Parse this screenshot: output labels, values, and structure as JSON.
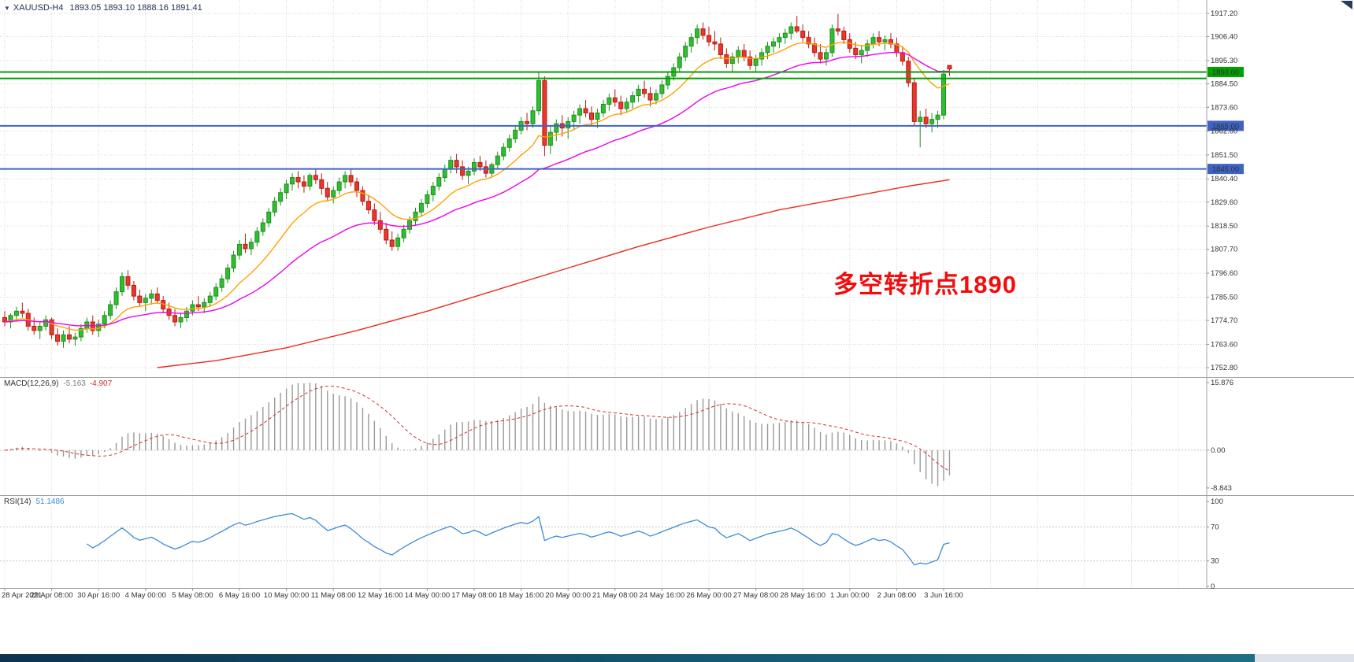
{
  "header": {
    "collapse_arrow": "▼",
    "symbol": "XAUUSD-H4",
    "ohlc": "1893.05 1893.10 1888.16 1891.41"
  },
  "annotation": {
    "text": "多空转折点1890",
    "color": "#f20c0c"
  },
  "colors": {
    "candle_up": "#2FBE2F",
    "candle_up_border": "#1F8F1F",
    "candle_down": "#E8382D",
    "candle_down_border": "#B51A10",
    "ma_fast": "#FFA200",
    "ma_medium": "#EE00EE",
    "ma_slow": "#EE2A1C",
    "macd_histogram": "#999999",
    "macd_signal": "#D63031",
    "rsi_line": "#3D8BD4",
    "hline_green": "#00A000",
    "hline_blue": "#3E63C4",
    "grid": "#D6D6D6"
  },
  "price_axis": {
    "ticks": [
      {
        "v": 1917.2,
        "label": "1917.20"
      },
      {
        "v": 1906.4,
        "label": "1906.40"
      },
      {
        "v": 1895.3,
        "label": "1895.30"
      },
      {
        "v": 1884.5,
        "label": "1884.50"
      },
      {
        "v": 1873.6,
        "label": "1873.60"
      },
      {
        "v": 1862.6,
        "label": "1862.60"
      },
      {
        "v": 1851.5,
        "label": "1851.50"
      },
      {
        "v": 1840.4,
        "label": "1840.40"
      },
      {
        "v": 1829.6,
        "label": "1829.60"
      },
      {
        "v": 1818.5,
        "label": "1818.50"
      },
      {
        "v": 1807.7,
        "label": "1807.70"
      },
      {
        "v": 1796.6,
        "label": "1796.60"
      },
      {
        "v": 1785.5,
        "label": "1785.50"
      },
      {
        "v": 1774.7,
        "label": "1774.70"
      },
      {
        "v": 1763.6,
        "label": "1763.60"
      },
      {
        "v": 1752.8,
        "label": "1752.80"
      }
    ]
  },
  "hlines": [
    {
      "price": 1890.0,
      "color": "#00A000",
      "badge": "1890.00"
    },
    {
      "price": 1887.0,
      "color": "#00A000",
      "badge": ""
    },
    {
      "price": 1865.0,
      "color": "#3E63C4",
      "badge": "1865.00"
    },
    {
      "price": 1845.0,
      "color": "#3E63C4",
      "badge": "1845.00"
    }
  ],
  "indicators": {
    "macd": {
      "label": "MACD(12,26,9)",
      "value1": "-5.163",
      "value2": "-4.907",
      "axis_ticks": [
        {
          "v": 15.876,
          "label": "15.876"
        },
        {
          "v": 0,
          "label": "0.00"
        },
        {
          "v": -8.843,
          "label": "-8.843"
        }
      ]
    },
    "rsi": {
      "label": "RSI(14)",
      "value": "51.1486",
      "levels": [
        70,
        30
      ],
      "axis_ticks": [
        {
          "v": 100,
          "label": "100"
        },
        {
          "v": 70,
          "label": "70"
        },
        {
          "v": 30,
          "label": "30"
        },
        {
          "v": 0,
          "label": "0"
        }
      ]
    }
  },
  "chart_data": {
    "type": "candlestick",
    "symbol": "XAUUSD",
    "timeframe": "H4",
    "ylim": [
      1752.8,
      1917.2
    ],
    "bars_per_label": 8,
    "x_labels": [
      "28 Apr 2021",
      "29 Apr 08:00",
      "30 Apr 16:00",
      "4 May 00:00",
      "5 May 08:00",
      "6 May 16:00",
      "10 May 00:00",
      "11 May 08:00",
      "12 May 16:00",
      "14 May 00:00",
      "17 May 08:00",
      "18 May 16:00",
      "20 May 00:00",
      "21 May 08:00",
      "24 May 16:00",
      "26 May 00:00",
      "27 May 08:00",
      "28 May 16:00",
      "1 Jun 00:00",
      "2 Jun 08:00",
      "3 Jun 16:00"
    ],
    "candles": [
      [
        1776,
        1779,
        1772,
        1774
      ],
      [
        1774,
        1778,
        1771,
        1777
      ],
      [
        1777,
        1781,
        1774,
        1779
      ],
      [
        1779,
        1783,
        1776,
        1778
      ],
      [
        1778,
        1780,
        1770,
        1772
      ],
      [
        1772,
        1776,
        1768,
        1770
      ],
      [
        1770,
        1774,
        1766,
        1772
      ],
      [
        1772,
        1777,
        1770,
        1775
      ],
      [
        1775,
        1776,
        1766,
        1768
      ],
      [
        1768,
        1771,
        1763,
        1765
      ],
      [
        1765,
        1770,
        1762,
        1768
      ],
      [
        1768,
        1772,
        1764,
        1766
      ],
      [
        1766,
        1769,
        1763,
        1767
      ],
      [
        1767,
        1773,
        1765,
        1771
      ],
      [
        1771,
        1776,
        1769,
        1774
      ],
      [
        1774,
        1777,
        1768,
        1770
      ],
      [
        1770,
        1775,
        1767,
        1773
      ],
      [
        1773,
        1779,
        1771,
        1777
      ],
      [
        1777,
        1784,
        1775,
        1782
      ],
      [
        1782,
        1790,
        1780,
        1788
      ],
      [
        1788,
        1797,
        1786,
        1795
      ],
      [
        1795,
        1798,
        1789,
        1791
      ],
      [
        1791,
        1793,
        1784,
        1786
      ],
      [
        1786,
        1789,
        1781,
        1783
      ],
      [
        1783,
        1787,
        1779,
        1785
      ],
      [
        1785,
        1789,
        1782,
        1787
      ],
      [
        1787,
        1790,
        1783,
        1784
      ],
      [
        1784,
        1786,
        1778,
        1780
      ],
      [
        1780,
        1783,
        1775,
        1777
      ],
      [
        1777,
        1780,
        1772,
        1774
      ],
      [
        1774,
        1778,
        1771,
        1776
      ],
      [
        1776,
        1781,
        1774,
        1779
      ],
      [
        1779,
        1784,
        1777,
        1782
      ],
      [
        1782,
        1786,
        1779,
        1781
      ],
      [
        1781,
        1785,
        1778,
        1783
      ],
      [
        1783,
        1788,
        1781,
        1786
      ],
      [
        1786,
        1792,
        1784,
        1790
      ],
      [
        1790,
        1796,
        1788,
        1794
      ],
      [
        1794,
        1801,
        1792,
        1799
      ],
      [
        1799,
        1807,
        1797,
        1805
      ],
      [
        1805,
        1812,
        1803,
        1810
      ],
      [
        1810,
        1815,
        1806,
        1808
      ],
      [
        1808,
        1813,
        1805,
        1811
      ],
      [
        1811,
        1818,
        1809,
        1816
      ],
      [
        1816,
        1822,
        1814,
        1820
      ],
      [
        1820,
        1827,
        1818,
        1825
      ],
      [
        1825,
        1832,
        1823,
        1830
      ],
      [
        1830,
        1836,
        1828,
        1834
      ],
      [
        1834,
        1840,
        1831,
        1838
      ],
      [
        1838,
        1843,
        1835,
        1841
      ],
      [
        1841,
        1844,
        1836,
        1839
      ],
      [
        1839,
        1842,
        1834,
        1837
      ],
      [
        1837,
        1843,
        1835,
        1842
      ],
      [
        1842,
        1845,
        1838,
        1840
      ],
      [
        1840,
        1843,
        1833,
        1836
      ],
      [
        1836,
        1839,
        1830,
        1832
      ],
      [
        1832,
        1837,
        1829,
        1835
      ],
      [
        1835,
        1841,
        1833,
        1839
      ],
      [
        1839,
        1844,
        1836,
        1842
      ],
      [
        1842,
        1845,
        1837,
        1839
      ],
      [
        1839,
        1841,
        1832,
        1835
      ],
      [
        1835,
        1837,
        1828,
        1830
      ],
      [
        1830,
        1833,
        1824,
        1826
      ],
      [
        1826,
        1829,
        1819,
        1821
      ],
      [
        1821,
        1825,
        1815,
        1817
      ],
      [
        1817,
        1820,
        1810,
        1812
      ],
      [
        1812,
        1816,
        1807,
        1809
      ],
      [
        1809,
        1815,
        1807,
        1813
      ],
      [
        1813,
        1819,
        1811,
        1817
      ],
      [
        1817,
        1823,
        1815,
        1821
      ],
      [
        1821,
        1827,
        1819,
        1825
      ],
      [
        1825,
        1831,
        1823,
        1829
      ],
      [
        1829,
        1835,
        1827,
        1833
      ],
      [
        1833,
        1839,
        1830,
        1837
      ],
      [
        1837,
        1843,
        1835,
        1841
      ],
      [
        1841,
        1847,
        1839,
        1845
      ],
      [
        1845,
        1851,
        1843,
        1849
      ],
      [
        1849,
        1852,
        1843,
        1846
      ],
      [
        1846,
        1849,
        1840,
        1842
      ],
      [
        1842,
        1846,
        1838,
        1844
      ],
      [
        1844,
        1850,
        1842,
        1848
      ],
      [
        1848,
        1851,
        1844,
        1846
      ],
      [
        1846,
        1849,
        1841,
        1843
      ],
      [
        1843,
        1848,
        1841,
        1847
      ],
      [
        1847,
        1853,
        1845,
        1851
      ],
      [
        1851,
        1857,
        1849,
        1855
      ],
      [
        1855,
        1861,
        1853,
        1859
      ],
      [
        1859,
        1865,
        1857,
        1863
      ],
      [
        1863,
        1869,
        1861,
        1867
      ],
      [
        1867,
        1871,
        1863,
        1866
      ],
      [
        1866,
        1874,
        1864,
        1872
      ],
      [
        1872,
        1890,
        1870,
        1886
      ],
      [
        1886,
        1888,
        1851,
        1856
      ],
      [
        1856,
        1865,
        1852,
        1862
      ],
      [
        1862,
        1868,
        1858,
        1866
      ],
      [
        1866,
        1870,
        1860,
        1864
      ],
      [
        1864,
        1869,
        1859,
        1867
      ],
      [
        1867,
        1872,
        1863,
        1870
      ],
      [
        1870,
        1875,
        1866,
        1873
      ],
      [
        1873,
        1877,
        1869,
        1871
      ],
      [
        1871,
        1874,
        1865,
        1868
      ],
      [
        1868,
        1873,
        1864,
        1871
      ],
      [
        1871,
        1877,
        1869,
        1875
      ],
      [
        1875,
        1880,
        1872,
        1878
      ],
      [
        1878,
        1882,
        1874,
        1876
      ],
      [
        1876,
        1879,
        1870,
        1873
      ],
      [
        1873,
        1878,
        1871,
        1876
      ],
      [
        1876,
        1881,
        1873,
        1879
      ],
      [
        1879,
        1884,
        1876,
        1882
      ],
      [
        1882,
        1886,
        1878,
        1880
      ],
      [
        1880,
        1883,
        1874,
        1877
      ],
      [
        1877,
        1882,
        1875,
        1880
      ],
      [
        1880,
        1886,
        1878,
        1884
      ],
      [
        1884,
        1890,
        1882,
        1888
      ],
      [
        1888,
        1894,
        1886,
        1892
      ],
      [
        1892,
        1899,
        1890,
        1897
      ],
      [
        1897,
        1904,
        1895,
        1902
      ],
      [
        1902,
        1908,
        1899,
        1906
      ],
      [
        1906,
        1912,
        1903,
        1910
      ],
      [
        1910,
        1913,
        1905,
        1907
      ],
      [
        1907,
        1911,
        1902,
        1904
      ],
      [
        1904,
        1909,
        1900,
        1903
      ],
      [
        1903,
        1906,
        1896,
        1898
      ],
      [
        1898,
        1901,
        1892,
        1894
      ],
      [
        1894,
        1899,
        1890,
        1897
      ],
      [
        1897,
        1902,
        1894,
        1900
      ],
      [
        1900,
        1903,
        1895,
        1897
      ],
      [
        1897,
        1900,
        1891,
        1893
      ],
      [
        1893,
        1898,
        1890,
        1896
      ],
      [
        1896,
        1901,
        1893,
        1899
      ],
      [
        1899,
        1904,
        1896,
        1902
      ],
      [
        1902,
        1906,
        1899,
        1904
      ],
      [
        1904,
        1908,
        1901,
        1906
      ],
      [
        1906,
        1910,
        1903,
        1908
      ],
      [
        1908,
        1913,
        1905,
        1911
      ],
      [
        1911,
        1916,
        1908,
        1909
      ],
      [
        1909,
        1912,
        1904,
        1906
      ],
      [
        1906,
        1909,
        1901,
        1903
      ],
      [
        1903,
        1906,
        1897,
        1899
      ],
      [
        1899,
        1903,
        1894,
        1896
      ],
      [
        1896,
        1901,
        1893,
        1899
      ],
      [
        1899,
        1912,
        1897,
        1910
      ],
      [
        1910,
        1917,
        1907,
        1909
      ],
      [
        1909,
        1911,
        1903,
        1905
      ],
      [
        1905,
        1908,
        1899,
        1901
      ],
      [
        1901,
        1904,
        1896,
        1898
      ],
      [
        1898,
        1902,
        1894,
        1900
      ],
      [
        1900,
        1905,
        1897,
        1903
      ],
      [
        1903,
        1908,
        1901,
        1906
      ],
      [
        1906,
        1909,
        1902,
        1904
      ],
      [
        1904,
        1907,
        1900,
        1905
      ],
      [
        1905,
        1908,
        1901,
        1903
      ],
      [
        1903,
        1906,
        1897,
        1899
      ],
      [
        1899,
        1902,
        1893,
        1895
      ],
      [
        1895,
        1897,
        1883,
        1885
      ],
      [
        1885,
        1887,
        1865,
        1867
      ],
      [
        1867,
        1872,
        1855,
        1869
      ],
      [
        1869,
        1873,
        1864,
        1866
      ],
      [
        1866,
        1871,
        1862,
        1868
      ],
      [
        1868,
        1872,
        1864,
        1870
      ],
      [
        1870,
        1891,
        1868,
        1889
      ],
      [
        1893.05,
        1893.1,
        1888.16,
        1891.41
      ]
    ],
    "overlays": [
      {
        "name": "ma-fast",
        "type": "ema",
        "period": 13,
        "color": "#FFA200"
      },
      {
        "name": "ma-medium",
        "type": "ema",
        "period": 34,
        "color": "#EE00EE"
      },
      {
        "name": "ma-slow",
        "type": "points",
        "color": "#EE2A1C",
        "points": [
          [
            26,
            1752.8
          ],
          [
            36,
            1756
          ],
          [
            48,
            1762
          ],
          [
            60,
            1770
          ],
          [
            72,
            1779
          ],
          [
            84,
            1789
          ],
          [
            96,
            1799
          ],
          [
            108,
            1809
          ],
          [
            120,
            1818
          ],
          [
            132,
            1826
          ],
          [
            144,
            1832
          ],
          [
            154,
            1837
          ],
          [
            161,
            1840
          ]
        ]
      }
    ]
  }
}
